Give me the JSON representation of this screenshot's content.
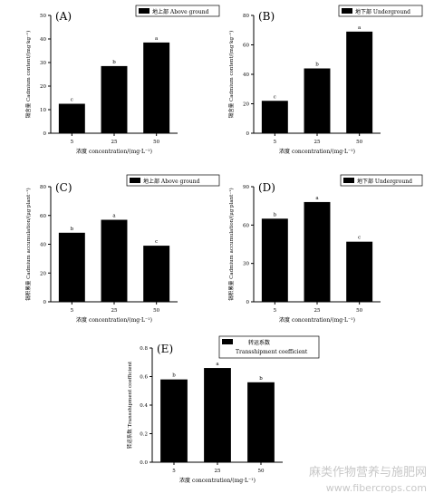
{
  "chart_data": [
    {
      "type": "bar",
      "panel_label": "(A)",
      "legend": "地上部 Above ground",
      "categories": [
        "5",
        "25",
        "50"
      ],
      "values": [
        12.5,
        28.5,
        38.5
      ],
      "bar_labels": [
        "c",
        "b",
        "a"
      ],
      "ylabel": "镉含量 Cadmium content/(mg·kg⁻¹)",
      "xlabel": "浓度 concentration/(mg·L⁻¹)",
      "ylim": [
        0,
        50
      ],
      "yticks": [
        "0",
        "10",
        "20",
        "30",
        "40",
        "50"
      ]
    },
    {
      "type": "bar",
      "panel_label": "(B)",
      "legend": "地下部 Underground",
      "categories": [
        "5",
        "25",
        "50"
      ],
      "values": [
        22,
        44,
        69
      ],
      "bar_labels": [
        "c",
        "b",
        "a"
      ],
      "ylabel": "镉含量 Cadmium content/(mg·kg⁻¹)",
      "xlabel": "浓度 concentration/(mg·L⁻¹)",
      "ylim": [
        0,
        80
      ],
      "yticks": [
        "0",
        "20",
        "40",
        "60",
        "80"
      ]
    },
    {
      "type": "bar",
      "panel_label": "(C)",
      "legend": "地上部 Above ground",
      "categories": [
        "5",
        "25",
        "50"
      ],
      "values": [
        48,
        57,
        39
      ],
      "bar_labels": [
        "b",
        "a",
        "c"
      ],
      "ylabel": "镉积累量 Cadmium accumulation/(μg·plant⁻¹)",
      "xlabel": "浓度 concentration/(mg·L⁻¹)",
      "ylim": [
        0,
        80
      ],
      "yticks": [
        "0",
        "20",
        "40",
        "60",
        "80"
      ]
    },
    {
      "type": "bar",
      "panel_label": "(D)",
      "legend": "地下部 Underground",
      "categories": [
        "5",
        "25",
        "50"
      ],
      "values": [
        65,
        78,
        47
      ],
      "bar_labels": [
        "b",
        "a",
        "c"
      ],
      "ylabel": "镉积累量 Cadmium accumulation/(μg·plant⁻¹)",
      "xlabel": "浓度 concentration/(mg·L⁻¹)",
      "ylim": [
        0,
        90
      ],
      "yticks": [
        "0",
        "30",
        "60",
        "90"
      ]
    },
    {
      "type": "bar",
      "panel_label": "(E)",
      "legend": "转运系数 Transshipment coefficient",
      "categories": [
        "5",
        "25",
        "50"
      ],
      "values": [
        0.58,
        0.66,
        0.56
      ],
      "bar_labels": [
        "b",
        "a",
        "b"
      ],
      "ylabel": "转运系数 Transshipment coefficient",
      "xlabel": "浓度 concentration/(mg·L⁻¹)",
      "ylim": [
        0,
        0.8
      ],
      "yticks": [
        "0.0",
        "0.2",
        "0.4",
        "0.6",
        "0.8"
      ]
    }
  ],
  "watermark": {
    "line1": "麻类作物营养与施肥网",
    "line2": "www.fibercrops.com"
  },
  "colors": {
    "bar": "#000000",
    "axis": "#000000",
    "watermark": "#c8c8c8"
  }
}
